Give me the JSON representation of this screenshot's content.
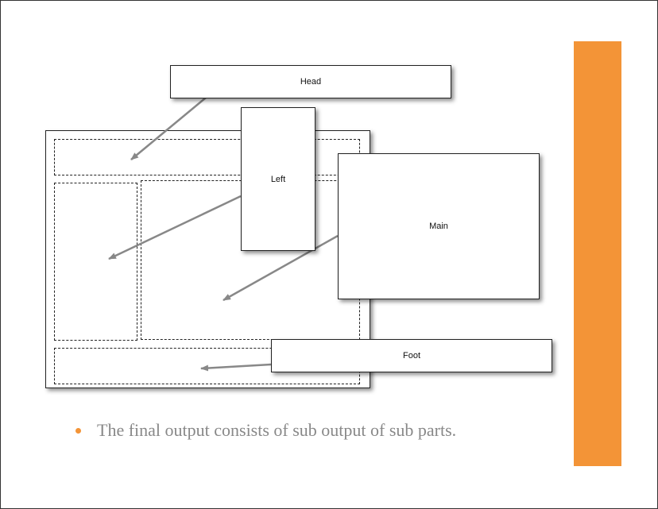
{
  "colors": {
    "accent": "#F39437",
    "arrow": "#888888",
    "text": "#888888"
  },
  "boxes": {
    "head": "Head",
    "left": "Left",
    "main": "Main",
    "foot": "Foot"
  },
  "bullets": [
    "The final output consists of sub output of sub parts."
  ]
}
